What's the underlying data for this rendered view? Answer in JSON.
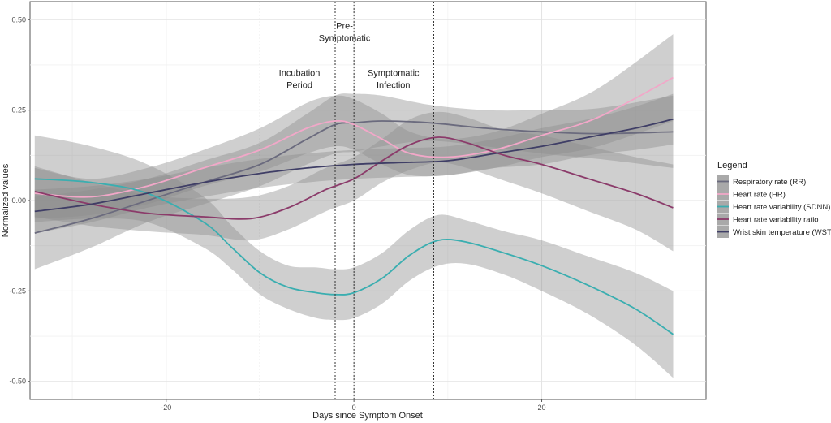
{
  "chart_data": {
    "type": "line",
    "title": "",
    "xlabel": "Days since Symptom Onset",
    "ylabel": "Normalized values",
    "xlim": [
      -34.5,
      37.5
    ],
    "ylim": [
      -0.55,
      0.55
    ],
    "xticks": [
      -20,
      0,
      20
    ],
    "xtick_labels": [
      "-20",
      "0",
      "20"
    ],
    "yticks": [
      -0.5,
      -0.25,
      0.0,
      0.25,
      0.5
    ],
    "ytick_labels": [
      "-0.50",
      "-0.25",
      "0.00",
      "0.25",
      "0.50"
    ],
    "grid": true,
    "vlines": [
      -10,
      -2,
      0,
      8.5
    ],
    "annotations": [
      {
        "lines": [
          "Incubation",
          "Period"
        ],
        "x": -5.8,
        "y": 0.345
      },
      {
        "lines": [
          "Pre-",
          "Symptomatic"
        ],
        "x": -1.0,
        "y": 0.475
      },
      {
        "lines": [
          "Symptomatic",
          "Infection"
        ],
        "x": 4.2,
        "y": 0.345
      }
    ],
    "legend": {
      "title": "Legend",
      "position": "right"
    },
    "series": [
      {
        "name": "Respiratory rate (RR)",
        "color": "#6b6b7e",
        "x": [
          -34,
          -28,
          -22,
          -16,
          -10,
          -5,
          -2,
          0,
          3,
          8,
          14,
          20,
          26,
          34
        ],
        "y": [
          -0.09,
          -0.05,
          0.0,
          0.05,
          0.1,
          0.17,
          0.21,
          0.215,
          0.22,
          0.215,
          0.2,
          0.19,
          0.185,
          0.19
        ],
        "ci": [
          0.1,
          0.08,
          0.06,
          0.06,
          0.06,
          0.07,
          0.08,
          0.08,
          0.07,
          0.05,
          0.05,
          0.06,
          0.07,
          0.1
        ]
      },
      {
        "name": "Heart rate (HR)",
        "color": "#f2a7c8",
        "x": [
          -34,
          -28,
          -22,
          -16,
          -10,
          -5,
          -2,
          0,
          3,
          6,
          10,
          15,
          20,
          26,
          34
        ],
        "y": [
          0.02,
          0.01,
          0.04,
          0.09,
          0.14,
          0.2,
          0.22,
          0.21,
          0.17,
          0.13,
          0.12,
          0.14,
          0.18,
          0.23,
          0.34
        ],
        "ci": [
          0.07,
          0.05,
          0.05,
          0.05,
          0.06,
          0.07,
          0.07,
          0.07,
          0.07,
          0.06,
          0.05,
          0.05,
          0.06,
          0.08,
          0.12
        ]
      },
      {
        "name": "Heart rate variability (SDNN)",
        "color": "#3aaeb0",
        "x": [
          -34,
          -28,
          -22,
          -16,
          -13,
          -10,
          -7,
          -4,
          -2,
          0,
          3,
          6,
          9,
          12,
          16,
          20,
          25,
          30,
          34
        ],
        "y": [
          0.06,
          0.05,
          0.02,
          -0.06,
          -0.13,
          -0.2,
          -0.24,
          -0.255,
          -0.26,
          -0.255,
          -0.215,
          -0.15,
          -0.11,
          -0.115,
          -0.145,
          -0.18,
          -0.235,
          -0.3,
          -0.37
        ],
        "ci": [
          0.12,
          0.1,
          0.08,
          0.07,
          0.06,
          0.06,
          0.06,
          0.07,
          0.07,
          0.07,
          0.07,
          0.07,
          0.07,
          0.06,
          0.06,
          0.07,
          0.08,
          0.1,
          0.12
        ]
      },
      {
        "name": "Heart rate variability ratio",
        "color": "#8b3b6a",
        "x": [
          -34,
          -28,
          -22,
          -16,
          -11,
          -7,
          -3,
          0,
          3,
          6,
          9,
          12,
          16,
          20,
          25,
          30,
          34
        ],
        "y": [
          0.025,
          -0.01,
          -0.035,
          -0.045,
          -0.05,
          -0.02,
          0.03,
          0.06,
          0.11,
          0.155,
          0.175,
          0.16,
          0.125,
          0.1,
          0.06,
          0.02,
          -0.02
        ],
        "ci": [
          0.07,
          0.06,
          0.05,
          0.05,
          0.06,
          0.06,
          0.06,
          0.06,
          0.06,
          0.07,
          0.07,
          0.07,
          0.07,
          0.08,
          0.09,
          0.1,
          0.12
        ]
      },
      {
        "name": "Wrist skin temperature (WST)",
        "color": "#3f3e66",
        "x": [
          -34,
          -28,
          -22,
          -16,
          -10,
          -5,
          0,
          5,
          10,
          15,
          20,
          25,
          30,
          34
        ],
        "y": [
          -0.03,
          -0.01,
          0.02,
          0.05,
          0.075,
          0.09,
          0.1,
          0.105,
          0.11,
          0.13,
          0.15,
          0.175,
          0.2,
          0.225
        ],
        "ci": [
          0.06,
          0.05,
          0.04,
          0.04,
          0.04,
          0.04,
          0.04,
          0.04,
          0.04,
          0.04,
          0.05,
          0.05,
          0.06,
          0.07
        ]
      }
    ]
  }
}
